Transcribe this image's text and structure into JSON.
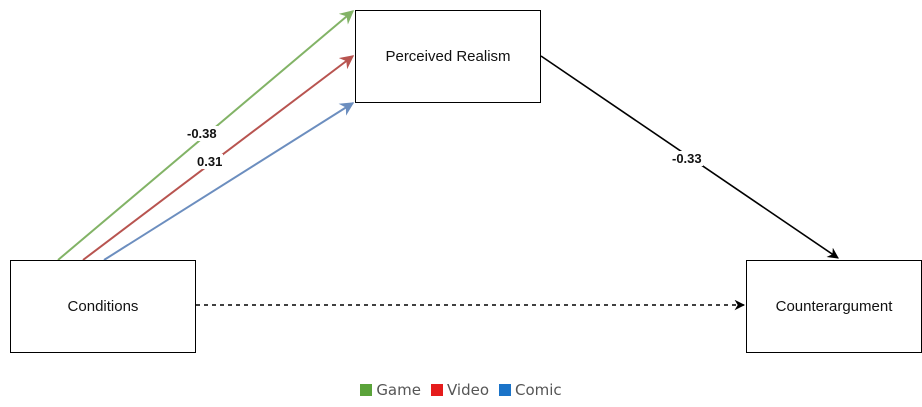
{
  "nodes": {
    "mediator": "Perceived Realism",
    "predictor": "Conditions",
    "outcome": "Counterargument"
  },
  "paths": {
    "game_to_mediator": "-0.38",
    "video_to_mediator": "0.31",
    "mediator_to_outcome": "-0.33"
  },
  "colors": {
    "game": "#82b366",
    "video": "#b85450",
    "comic": "#6c8ebf",
    "legend_game": "#5aa33a",
    "legend_video": "#e51c1c",
    "legend_comic": "#1a73c8"
  },
  "legend": {
    "items": [
      "Game",
      "Video",
      "Comic"
    ]
  }
}
